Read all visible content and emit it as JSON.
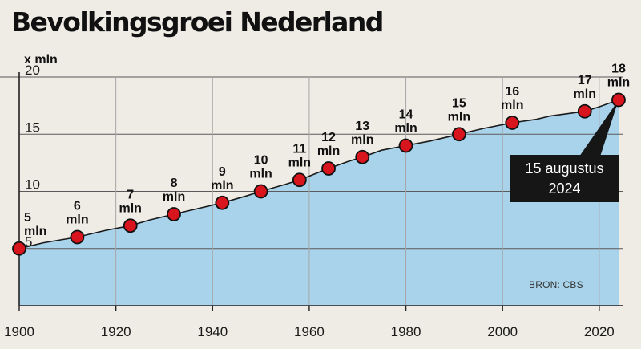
{
  "title": "Bevolkingsgroei Nederland",
  "source": "BRON: CBS",
  "colors": {
    "background": "#efebe5",
    "area": "#a9d3eb",
    "marker": "#d8141c",
    "callout": "#161616"
  },
  "chart_data": {
    "type": "area",
    "title": "Bevolkingsgroei Nederland",
    "ylabel": "x mln",
    "xlim": [
      1900,
      2025
    ],
    "ylim": [
      0,
      20
    ],
    "x_ticks": [
      1900,
      1920,
      1940,
      1960,
      1980,
      2000,
      2020
    ],
    "y_ticks": [
      5,
      10,
      15,
      20
    ],
    "grid": "horizontal and vertical",
    "series": [
      {
        "x": [
          1900,
          1905,
          1912,
          1918,
          1923,
          1927,
          1932,
          1937,
          1942,
          1947,
          1950,
          1955,
          1958,
          1961,
          1964,
          1968,
          1971,
          1975,
          1980,
          1985,
          1991,
          1996,
          2002,
          2007,
          2010,
          2017,
          2020,
          2024
        ],
        "y": [
          5.0,
          5.5,
          6.0,
          6.6,
          7.0,
          7.5,
          8.0,
          8.5,
          9.0,
          9.6,
          10.0,
          10.6,
          11.0,
          11.5,
          12.0,
          12.6,
          13.0,
          13.6,
          14.0,
          14.4,
          15.0,
          15.5,
          16.0,
          16.3,
          16.6,
          17.0,
          17.4,
          18.0
        ]
      }
    ],
    "milestones": [
      {
        "year": 1900,
        "value": 5,
        "label_top": "5",
        "label_bottom": "mln"
      },
      {
        "year": 1912,
        "value": 6,
        "label_top": "6",
        "label_bottom": "mln"
      },
      {
        "year": 1923,
        "value": 7,
        "label_top": "7",
        "label_bottom": "mln"
      },
      {
        "year": 1932,
        "value": 8,
        "label_top": "8",
        "label_bottom": "mln"
      },
      {
        "year": 1942,
        "value": 9,
        "label_top": "9",
        "label_bottom": "mln"
      },
      {
        "year": 1950,
        "value": 10,
        "label_top": "10",
        "label_bottom": "mln"
      },
      {
        "year": 1958,
        "value": 11,
        "label_top": "11",
        "label_bottom": "mln"
      },
      {
        "year": 1964,
        "value": 12,
        "label_top": "12",
        "label_bottom": "mln"
      },
      {
        "year": 1971,
        "value": 13,
        "label_top": "13",
        "label_bottom": "mln"
      },
      {
        "year": 1980,
        "value": 14,
        "label_top": "14",
        "label_bottom": "mln"
      },
      {
        "year": 1991,
        "value": 15,
        "label_top": "15",
        "label_bottom": "mln"
      },
      {
        "year": 2002,
        "value": 16,
        "label_top": "16",
        "label_bottom": "mln"
      },
      {
        "year": 2017,
        "value": 17,
        "label_top": "17",
        "label_bottom": "mln"
      },
      {
        "year": 2024,
        "value": 18,
        "label_top": "18",
        "label_bottom": "mln"
      }
    ],
    "annotation": {
      "line1": "15 augustus",
      "line2": "2024",
      "year": 2024,
      "value": 18
    }
  }
}
